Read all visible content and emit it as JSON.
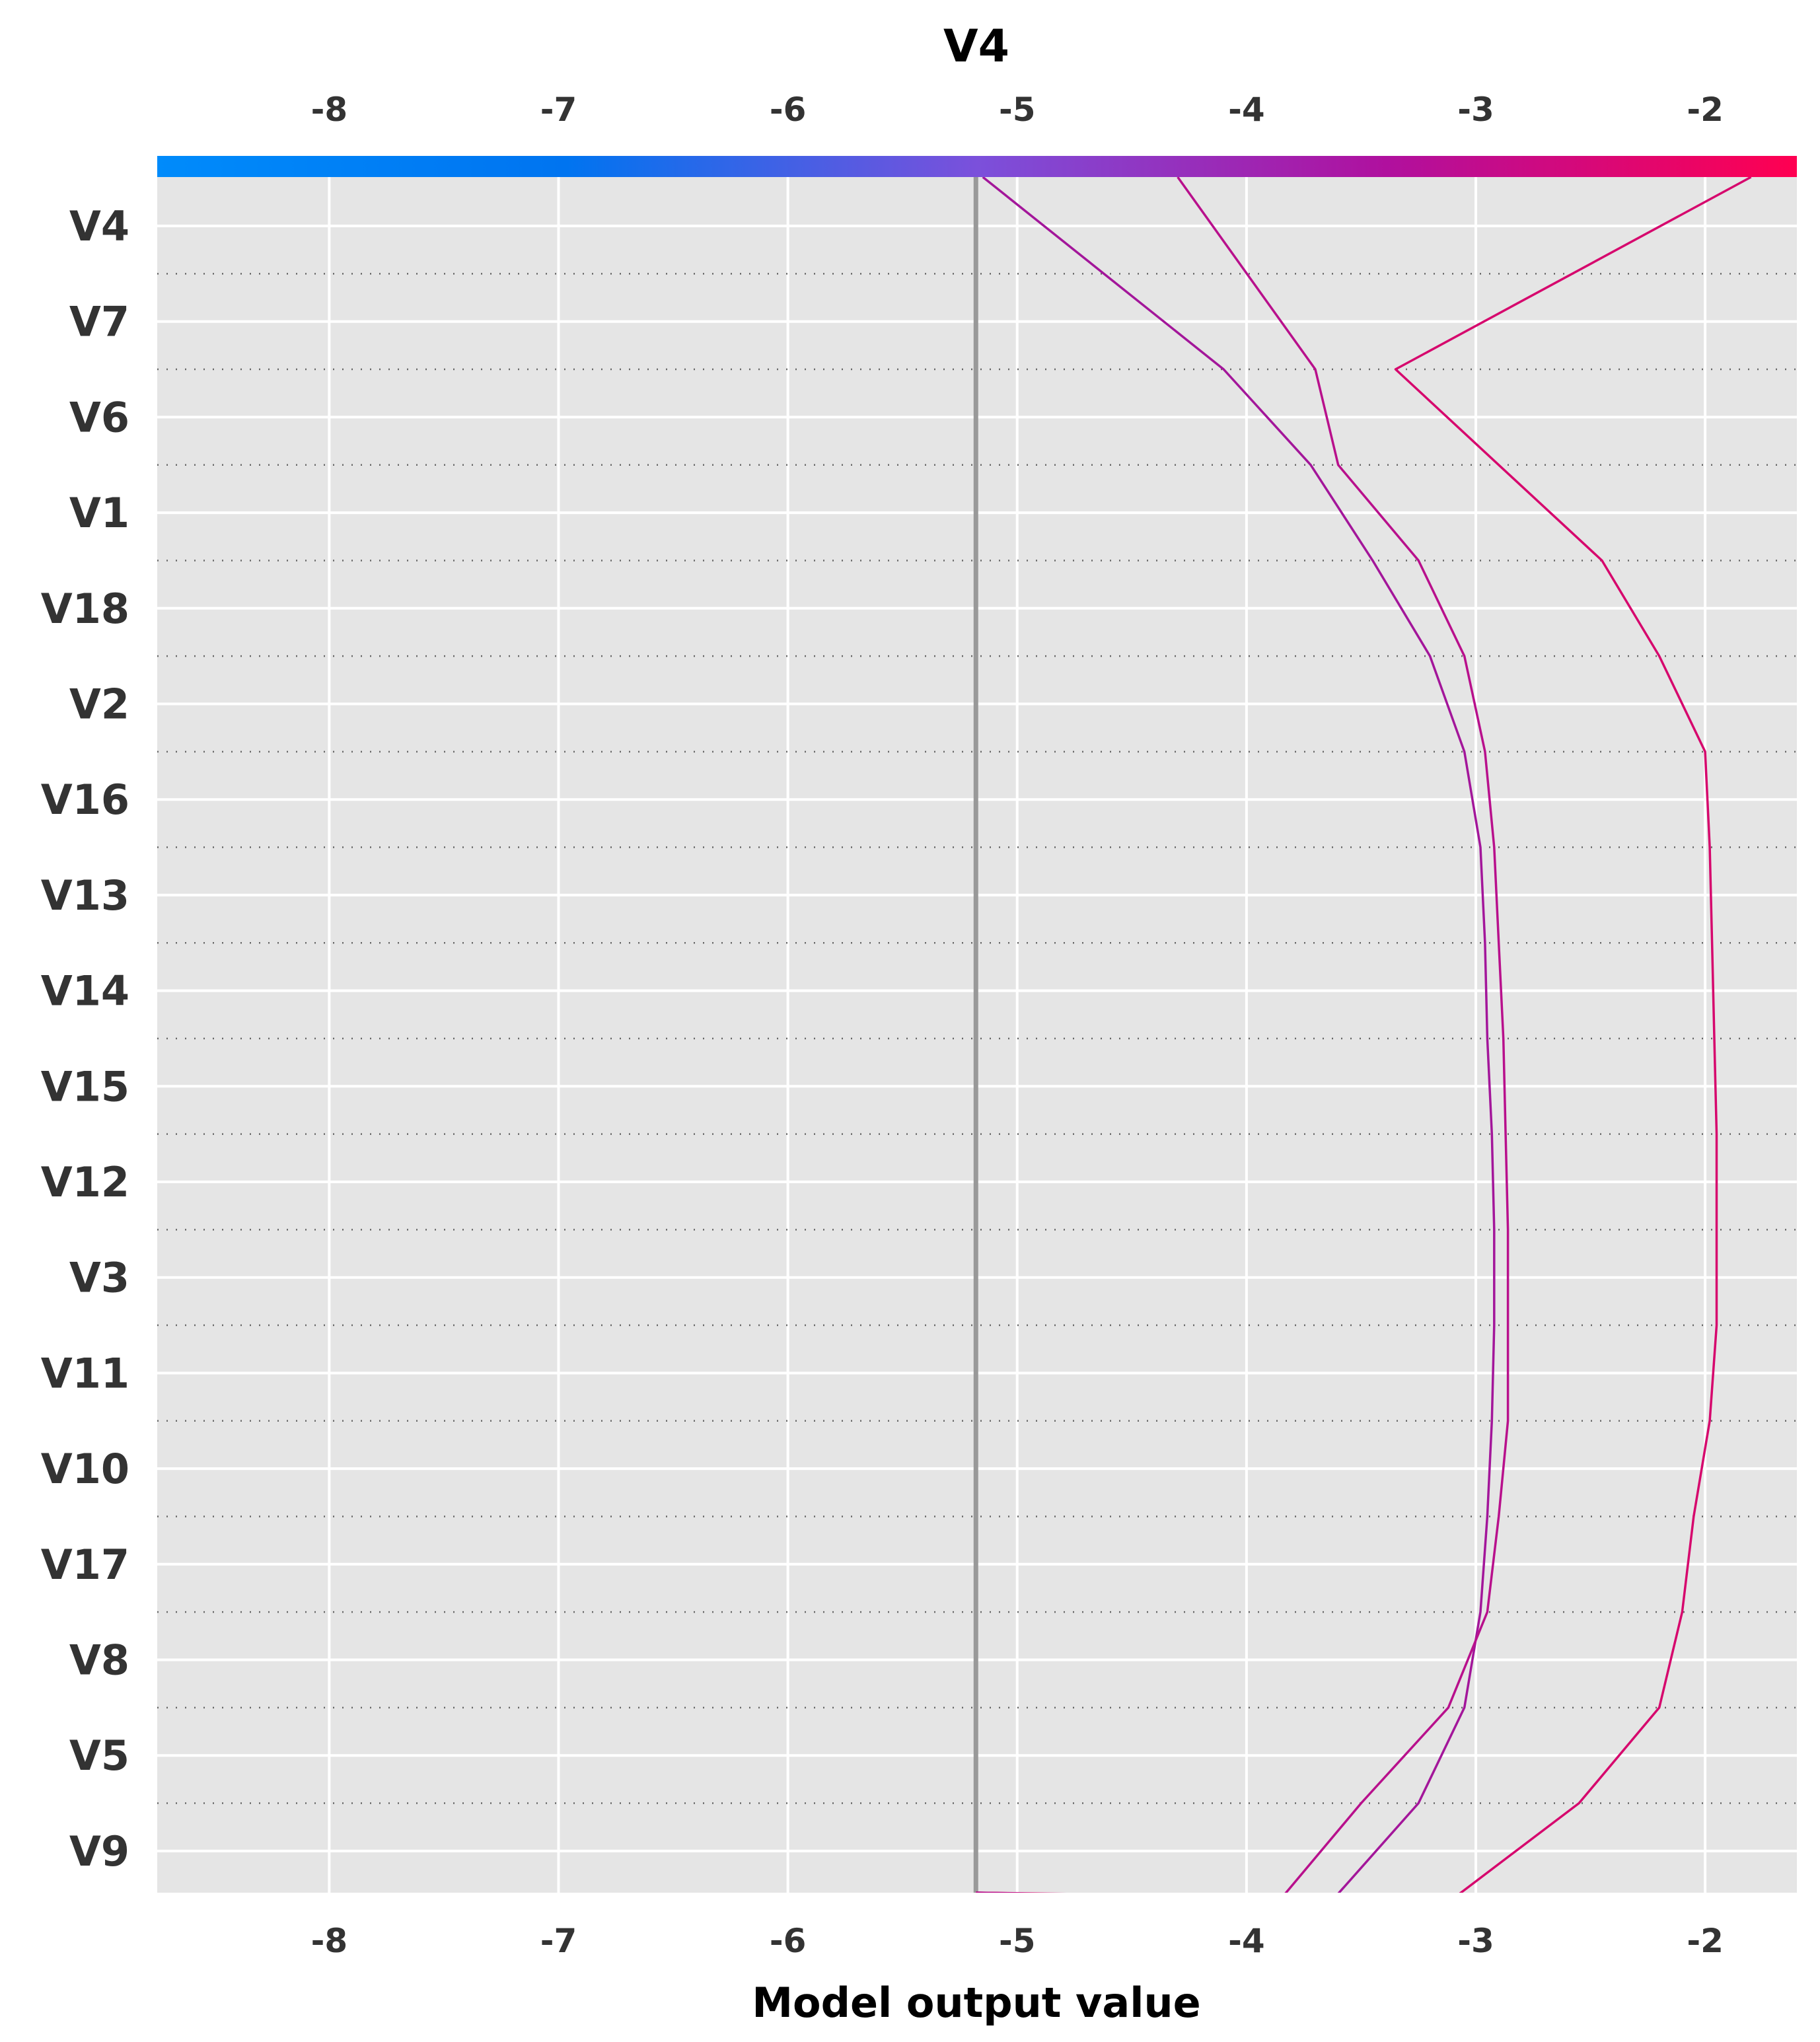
{
  "chart_data": {
    "type": "line",
    "subtype": "decision-plot",
    "title": "V4",
    "xlabel": "Model output value",
    "xlim": [
      -8.75,
      -1.6
    ],
    "x_ticks": [
      -8,
      -7,
      -6,
      -5,
      -4,
      -3,
      -2
    ],
    "x_tick_labels": [
      "-8",
      "-7",
      "-6",
      "-5",
      "-4",
      "-3",
      "-2"
    ],
    "features": [
      "V4",
      "V7",
      "V6",
      "V1",
      "V18",
      "V2",
      "V16",
      "V13",
      "V14",
      "V15",
      "V12",
      "V3",
      "V11",
      "V10",
      "V17",
      "V8",
      "V5",
      "V9"
    ],
    "base_value": -5.18,
    "grid": true,
    "colorbar": {
      "position": "top",
      "label": "V4",
      "range": [
        -8.75,
        -1.6
      ],
      "colors": [
        "#008bfb",
        "#0074f0",
        "#7b50db",
        "#b0109e",
        "#ff0051"
      ]
    },
    "line_count": 78,
    "series": [
      {
        "name": "",
        "color": "#a3169a",
        "values": [
          -5.18,
          -3.62,
          -3.25,
          -3.05,
          -2.98,
          -2.95,
          -2.93,
          -2.92,
          -2.92,
          -2.93,
          -2.95,
          -2.96,
          -2.98,
          -3.05,
          -3.2,
          -3.45,
          -3.72,
          -4.1,
          -5.15
        ]
      },
      {
        "name": "",
        "color": "#d6076d",
        "values": [
          -5.18,
          -3.1,
          -2.55,
          -2.2,
          -2.1,
          -2.05,
          -1.98,
          -1.95,
          -1.95,
          -1.95,
          -1.96,
          -1.97,
          -1.98,
          -2.0,
          -2.2,
          -2.45,
          -2.9,
          -3.35,
          -1.8
        ]
      },
      {
        "name": "",
        "color": "#b8108c",
        "values": [
          -5.18,
          -3.85,
          -3.5,
          -3.12,
          -2.95,
          -2.9,
          -2.86,
          -2.86,
          -2.86,
          -2.87,
          -2.88,
          -2.9,
          -2.92,
          -2.96,
          -3.05,
          -3.25,
          -3.6,
          -3.7,
          -4.3
        ]
      }
    ]
  }
}
